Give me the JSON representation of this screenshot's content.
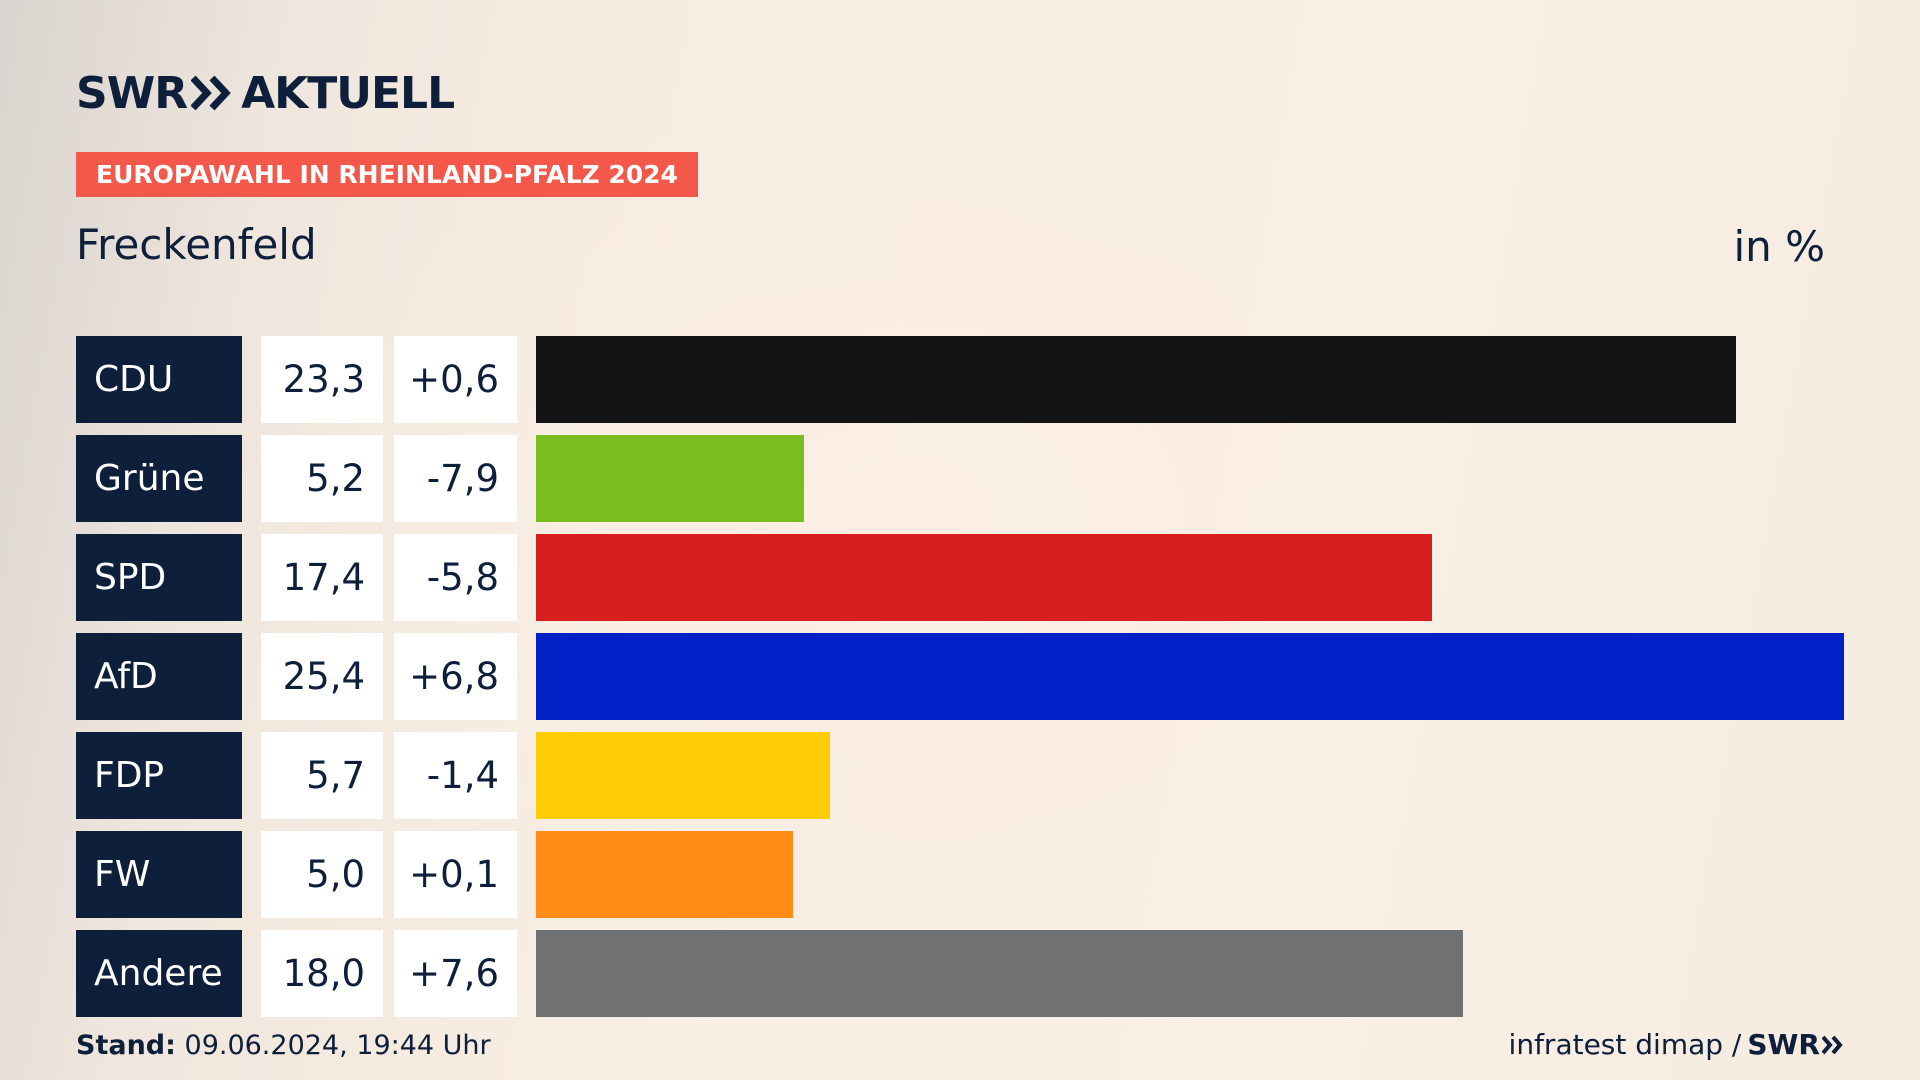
{
  "brand": {
    "name": "SWR",
    "product": "AKTUELL"
  },
  "header": {
    "tag": "EUROPAWAHL IN RHEINLAND-PFALZ 2024",
    "location": "Freckenfeld",
    "unit": "in %"
  },
  "chart_data": {
    "type": "bar",
    "orientation": "horizontal",
    "title": "EUROPAWAHL IN RHEINLAND-PFALZ 2024",
    "subtitle": "Freckenfeld",
    "unit": "in %",
    "xlim": [
      0,
      25.4
    ],
    "grid": false,
    "categories": [
      "CDU",
      "Grüne",
      "SPD",
      "AfD",
      "FDP",
      "FW",
      "Andere"
    ],
    "values": [
      23.3,
      5.2,
      17.4,
      25.4,
      5.7,
      5.0,
      18.0
    ],
    "value_labels": [
      "23,3",
      "5,2",
      "17,4",
      "25,4",
      "5,7",
      "5,0",
      "18,0"
    ],
    "diff_labels": [
      "+0,6",
      "-7,9",
      "-5,8",
      "+6,8",
      "-1,4",
      "+0,1",
      "+7,6"
    ],
    "colors": [
      "#141414",
      "#7abd1e",
      "#d81f1f",
      "#0021c6",
      "#ffcc06",
      "#fe8c17",
      "#707173"
    ]
  },
  "footer": {
    "stand_label": "Stand:",
    "stand_value": "09.06.2024, 19:44 Uhr",
    "source": "infratest dimap /",
    "source_brand": "SWR"
  }
}
